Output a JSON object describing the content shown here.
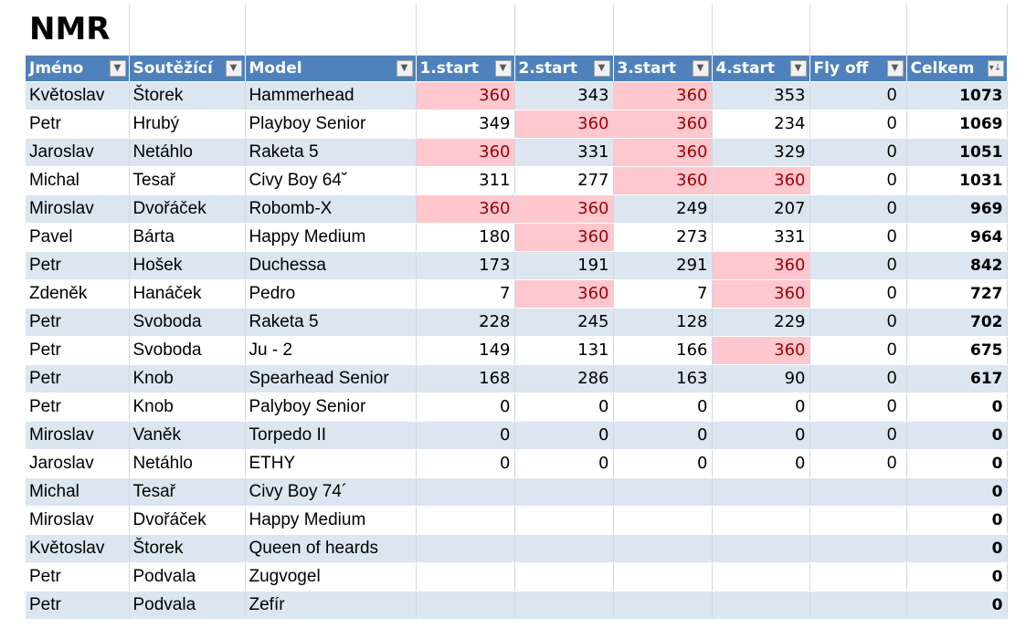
{
  "title": "NMR",
  "headers": [
    "Jméno",
    "Soutěžící",
    "Model",
    "1.start",
    "2.start",
    "3.start",
    "4.start",
    "Fly off",
    "Celkem"
  ],
  "filter_icon": "filter-dropdown-icon",
  "sort_icon": "sort-descending-filter-icon",
  "highlight_color": "#ffc7ce",
  "band_color": "#dce6f1",
  "header_color": "#4f81bd",
  "rows": [
    {
      "first": "Květoslav",
      "last": "Štorek",
      "model": "Hammerhead",
      "s1": "360",
      "s2": "343",
      "s3": "360",
      "s4": "353",
      "flyoff": "0",
      "total": "1073"
    },
    {
      "first": "Petr",
      "last": "Hrubý",
      "model": "Playboy Senior",
      "s1": "349",
      "s2": "360",
      "s3": "360",
      "s4": "234",
      "flyoff": "0",
      "total": "1069"
    },
    {
      "first": "Jaroslav",
      "last": "Netáhlo",
      "model": "Raketa 5",
      "s1": "360",
      "s2": "331",
      "s3": "360",
      "s4": "329",
      "flyoff": "0",
      "total": "1051"
    },
    {
      "first": "Michal",
      "last": "Tesař",
      "model": "Civy Boy 64˘",
      "s1": "311",
      "s2": "277",
      "s3": "360",
      "s4": "360",
      "flyoff": "0",
      "total": "1031"
    },
    {
      "first": "Miroslav",
      "last": "Dvořáček",
      "model": "Robomb-X",
      "s1": "360",
      "s2": "360",
      "s3": "249",
      "s4": "207",
      "flyoff": "0",
      "total": "969"
    },
    {
      "first": "Pavel",
      "last": "Bárta",
      "model": "Happy Medium",
      "s1": "180",
      "s2": "360",
      "s3": "273",
      "s4": "331",
      "flyoff": "0",
      "total": "964"
    },
    {
      "first": "Petr",
      "last": "Hošek",
      "model": "Duchessa",
      "s1": "173",
      "s2": "191",
      "s3": "291",
      "s4": "360",
      "flyoff": "0",
      "total": "842"
    },
    {
      "first": "Zdeněk",
      "last": "Hanáček",
      "model": "Pedro",
      "s1": "7",
      "s2": "360",
      "s3": "7",
      "s4": "360",
      "flyoff": "0",
      "total": "727"
    },
    {
      "first": "Petr",
      "last": "Svoboda",
      "model": "Raketa 5",
      "s1": "228",
      "s2": "245",
      "s3": "128",
      "s4": "229",
      "flyoff": "0",
      "total": "702"
    },
    {
      "first": "Petr",
      "last": "Svoboda",
      "model": "Ju - 2",
      "s1": "149",
      "s2": "131",
      "s3": "166",
      "s4": "360",
      "flyoff": "0",
      "total": "675"
    },
    {
      "first": "Petr",
      "last": "Knob",
      "model": "Spearhead Senior",
      "s1": "168",
      "s2": "286",
      "s3": "163",
      "s4": "90",
      "flyoff": "0",
      "total": "617"
    },
    {
      "first": "Petr",
      "last": "Knob",
      "model": "Palyboy Senior",
      "s1": "0",
      "s2": "0",
      "s3": "0",
      "s4": "0",
      "flyoff": "0",
      "total": "0"
    },
    {
      "first": "Miroslav",
      "last": "Vaněk",
      "model": "Torpedo II",
      "s1": "0",
      "s2": "0",
      "s3": "0",
      "s4": "0",
      "flyoff": "0",
      "total": "0"
    },
    {
      "first": "Jaroslav",
      "last": "Netáhlo",
      "model": "ETHY",
      "s1": "0",
      "s2": "0",
      "s3": "0",
      "s4": "0",
      "flyoff": "0",
      "total": "0"
    },
    {
      "first": "Michal",
      "last": "Tesař",
      "model": "Civy Boy 74´",
      "s1": "",
      "s2": "",
      "s3": "",
      "s4": "",
      "flyoff": "",
      "total": "0"
    },
    {
      "first": "Miroslav",
      "last": "Dvořáček",
      "model": "Happy Medium",
      "s1": "",
      "s2": "",
      "s3": "",
      "s4": "",
      "flyoff": "",
      "total": "0"
    },
    {
      "first": "Květoslav",
      "last": "Štorek",
      "model": "Queen of heards",
      "s1": "",
      "s2": "",
      "s3": "",
      "s4": "",
      "flyoff": "",
      "total": "0"
    },
    {
      "first": "Petr",
      "last": "Podvala",
      "model": "Zugvogel",
      "s1": "",
      "s2": "",
      "s3": "",
      "s4": "",
      "flyoff": "",
      "total": "0"
    },
    {
      "first": "Petr",
      "last": "Podvala",
      "model": "Zefír",
      "s1": "",
      "s2": "",
      "s3": "",
      "s4": "",
      "flyoff": "",
      "total": "0"
    }
  ]
}
